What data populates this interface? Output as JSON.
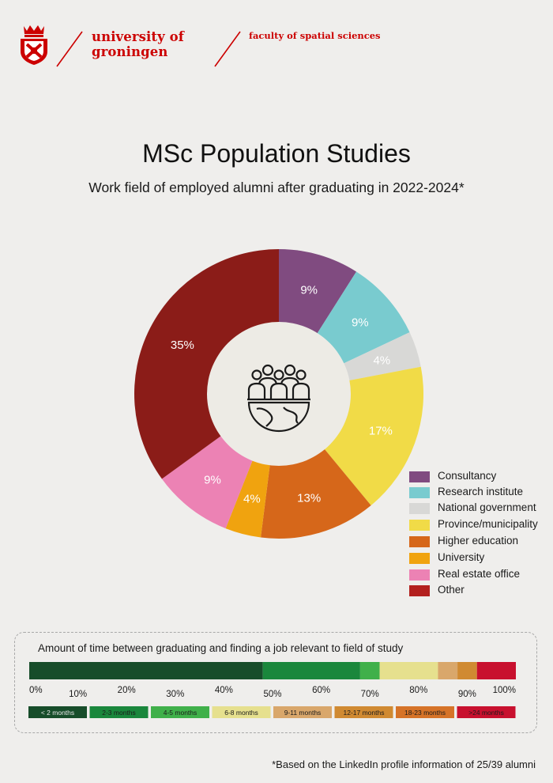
{
  "header": {
    "university_line1": "university of",
    "university_line2": "groningen",
    "faculty": "faculty of spatial sciences",
    "brand_color": "#cc0000",
    "logo_icon": "university-crest-icon"
  },
  "page_title": "MSc Population Studies",
  "subtitle": "Work field of employed alumni after graduating in 2022-2024*",
  "center_icon": "people-globe-icon",
  "chart_data": [
    {
      "type": "pie",
      "subtype": "donut",
      "slices": [
        {
          "label": "Consultancy",
          "value": 9,
          "value_label": "9%",
          "color": "#804b80"
        },
        {
          "label": "Research institute",
          "value": 9,
          "value_label": "9%",
          "color": "#79cbcf"
        },
        {
          "label": "National government",
          "value": 4,
          "value_label": "4%",
          "color": "#d8d8d6"
        },
        {
          "label": "Province/municipality",
          "value": 17,
          "value_label": "17%",
          "color": "#f1db47"
        },
        {
          "label": "Higher education",
          "value": 13,
          "value_label": "13%",
          "color": "#d6671a"
        },
        {
          "label": "University",
          "value": 4,
          "value_label": "4%",
          "color": "#f0a30f"
        },
        {
          "label": "Real estate office",
          "value": 9,
          "value_label": "9%",
          "color": "#ec82b4"
        },
        {
          "label": "Other",
          "value": 35,
          "value_label": "35%",
          "color": "#8b1c18"
        }
      ],
      "legend": [
        {
          "label": "Consultancy",
          "color": "#804b80"
        },
        {
          "label": "Research institute",
          "color": "#79cbcf"
        },
        {
          "label": "National government",
          "color": "#d8d8d6"
        },
        {
          "label": "Province/municipality",
          "color": "#f1db47"
        },
        {
          "label": "Higher education",
          "color": "#d6671a"
        },
        {
          "label": "University",
          "color": "#f0a30f"
        },
        {
          "label": "Real estate office",
          "color": "#ec82b4"
        },
        {
          "label": "Other",
          "color": "#b3201e"
        }
      ],
      "legend_position": "right"
    },
    {
      "type": "bar",
      "subtype": "stacked-horizontal-100",
      "title": "Amount of time between graduating and finding a job relevant to field of study",
      "xlim": [
        0,
        100
      ],
      "xticks": [
        "0%",
        "10%",
        "20%",
        "30%",
        "40%",
        "50%",
        "60%",
        "70%",
        "80%",
        "90%",
        "100%"
      ],
      "segments": [
        {
          "label": "< 2 months",
          "value": 48,
          "color": "#174d2a"
        },
        {
          "label": "2-3 months",
          "value": 20,
          "color": "#1a873c"
        },
        {
          "label": "4-5 months",
          "value": 4,
          "color": "#40b04a"
        },
        {
          "label": "6-8 months",
          "value": 12,
          "color": "#e6e08e"
        },
        {
          "label": "9-11 months",
          "value": 4,
          "color": "#d9a76b"
        },
        {
          "label": "12-17 months",
          "value": 4,
          "color": "#d08a32"
        },
        {
          "label": "18-23 months",
          "value": 0,
          "color": "#d67328"
        },
        {
          "label": ">24 months",
          "value": 8,
          "color": "#c8102e"
        }
      ]
    }
  ],
  "footnote": "*Based on the LinkedIn profile information of 25/39 alumni"
}
